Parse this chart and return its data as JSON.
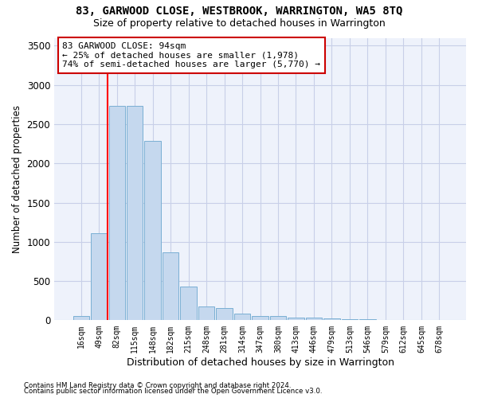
{
  "title": "83, GARWOOD CLOSE, WESTBROOK, WARRINGTON, WA5 8TQ",
  "subtitle": "Size of property relative to detached houses in Warrington",
  "xlabel": "Distribution of detached houses by size in Warrington",
  "ylabel": "Number of detached properties",
  "bar_color": "#c5d8ee",
  "bar_edge_color": "#7aafd4",
  "background_color": "#eef2fb",
  "grid_color": "#c8cfe8",
  "categories": [
    "16sqm",
    "49sqm",
    "82sqm",
    "115sqm",
    "148sqm",
    "182sqm",
    "215sqm",
    "248sqm",
    "281sqm",
    "314sqm",
    "347sqm",
    "380sqm",
    "413sqm",
    "446sqm",
    "479sqm",
    "513sqm",
    "546sqm",
    "579sqm",
    "612sqm",
    "645sqm",
    "678sqm"
  ],
  "values": [
    55,
    1110,
    2730,
    2730,
    2290,
    870,
    430,
    175,
    160,
    90,
    60,
    55,
    40,
    30,
    20,
    15,
    10,
    8,
    5,
    4,
    4
  ],
  "vline_x": 1.5,
  "annotation_text": "83 GARWOOD CLOSE: 94sqm\n← 25% of detached houses are smaller (1,978)\n74% of semi-detached houses are larger (5,770) →",
  "annotation_box_color": "#ffffff",
  "annotation_box_edgecolor": "#cc0000",
  "ylim": [
    0,
    3600
  ],
  "yticks": [
    0,
    500,
    1000,
    1500,
    2000,
    2500,
    3000,
    3500
  ],
  "footer_line1": "Contains HM Land Registry data © Crown copyright and database right 2024.",
  "footer_line2": "Contains public sector information licensed under the Open Government Licence v3.0."
}
